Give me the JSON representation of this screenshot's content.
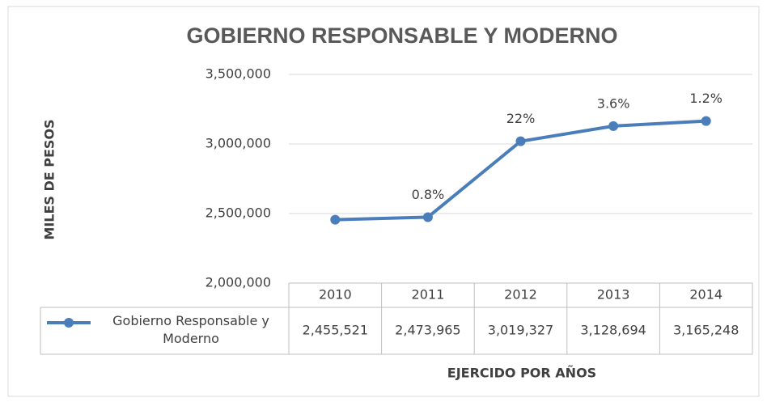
{
  "chart_data": {
    "type": "line",
    "title": "GOBIERNO RESPONSABLE Y MODERNO",
    "y_label": "MILES DE PESOS",
    "x_label": "EJERCIDO POR AÑOS",
    "categories": [
      "2010",
      "2011",
      "2012",
      "2013",
      "2014"
    ],
    "series": [
      {
        "name": "Gobierno Responsable y Moderno",
        "color": "#4a7ebb",
        "values": [
          2455521,
          2473965,
          3019327,
          3128694,
          3165248
        ],
        "value_labels": [
          "2,455,521",
          "2,473,965",
          "3,019,327",
          "3,128,694",
          "3,165,248"
        ]
      }
    ],
    "annotations": [
      null,
      "0.8%",
      "22%",
      "3.6%",
      "1.2%"
    ],
    "ylim": [
      2000000,
      3500000
    ],
    "yticks": [
      {
        "value": 2000000,
        "label": "2,000,000"
      },
      {
        "value": 2500000,
        "label": "2,500,000"
      },
      {
        "value": 3000000,
        "label": "3,000,000"
      },
      {
        "value": 3500000,
        "label": "3,500,000"
      }
    ],
    "grid": true
  }
}
